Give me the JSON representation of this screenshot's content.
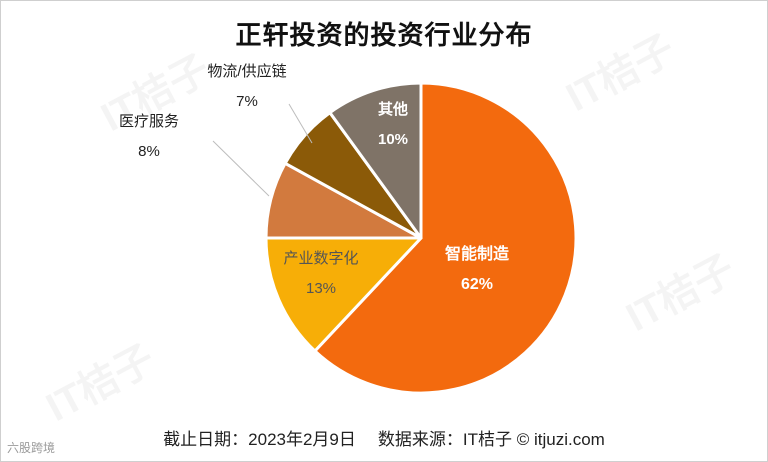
{
  "watermark_text": "IT桔子",
  "corner_mark": "六股跨境",
  "chart_data": {
    "type": "pie",
    "title": "正轩投资的投资行业分布",
    "slices": [
      {
        "label": "智能制造",
        "value": 62,
        "display": "62%",
        "color": "#F36A0E",
        "label_color": "#ffffff",
        "label_placement": "inside"
      },
      {
        "label": "产业数字化",
        "value": 13,
        "display": "13%",
        "color": "#F7AE07",
        "label_color": "#555555",
        "label_placement": "inside"
      },
      {
        "label": "医疗服务",
        "value": 8,
        "display": "8%",
        "color": "#D27A3E",
        "label_color": "#222222",
        "label_placement": "outside"
      },
      {
        "label": "物流/供应链",
        "value": 7,
        "display": "7%",
        "color": "#8B5A08",
        "label_color": "#222222",
        "label_placement": "outside"
      },
      {
        "label": "其他",
        "value": 10,
        "display": "10%",
        "color": "#7F7367",
        "label_color": "#ffffff",
        "label_placement": "inside"
      }
    ]
  },
  "footer": {
    "date": "截止日期：2023年2月9日",
    "source": "数据来源：IT桔子 © itjuzi.com"
  }
}
